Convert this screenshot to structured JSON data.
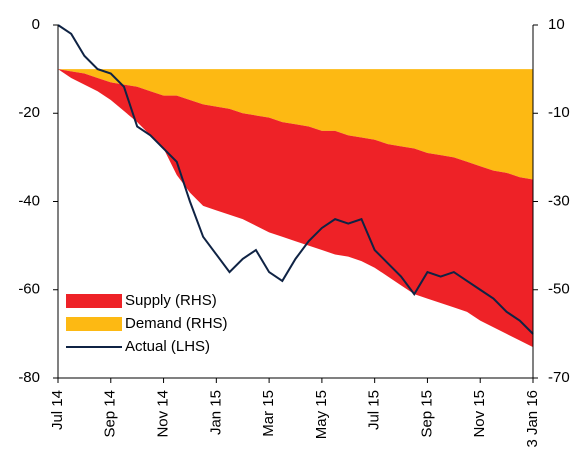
{
  "chart_data": {
    "type": "stacked-area-line",
    "categories": [
      "Jul 14",
      null,
      null,
      null,
      "Sep 14",
      null,
      null,
      null,
      "Nov 14",
      null,
      null,
      null,
      "Jan 15",
      null,
      null,
      null,
      "Mar 15",
      null,
      null,
      null,
      "May 15",
      null,
      null,
      null,
      "Jul 15",
      null,
      null,
      null,
      "Sep 15",
      null,
      null,
      null,
      "Nov 15",
      null,
      null,
      null,
      "3 Jan 16"
    ],
    "series": [
      {
        "name": "Supply (RHS)",
        "color": "#ee2227",
        "axis": "y2",
        "values": [
          0,
          -1.5,
          -2.5,
          -3,
          -4,
          -6,
          -8,
          -10,
          -12,
          -18,
          -21,
          -23,
          -23.5,
          -24,
          -24,
          -25,
          -26,
          -26,
          -26.5,
          -27,
          -27,
          -28,
          -27.5,
          -28,
          -29,
          -30,
          -31.5,
          -33,
          -33,
          -33.5,
          -34,
          -34,
          -35,
          -35.5,
          -36.5,
          -37,
          -38
        ]
      },
      {
        "name": "Demand (RHS)",
        "color": "#fdb913",
        "axis": "y2",
        "values": [
          0,
          -0.5,
          -1,
          -2,
          -3,
          -3.5,
          -4,
          -5,
          -6,
          -6,
          -7,
          -8,
          -8.5,
          -9,
          -10,
          -10.5,
          -11,
          -12,
          -12.5,
          -13,
          -14,
          -14,
          -15,
          -15.5,
          -16,
          -17,
          -17.5,
          -18,
          -19,
          -19.5,
          -20,
          -21,
          -22,
          -23,
          -23.5,
          -24.5,
          -25
        ]
      },
      {
        "name": "Actual (LHS)",
        "color": "#0f2344",
        "values": [
          0,
          -2,
          -7,
          -10,
          -11,
          -14,
          -23,
          -25,
          -28,
          -31,
          -40,
          -48,
          -52,
          -56,
          -53,
          -51,
          -56,
          -58,
          -53,
          -49,
          -46,
          -44,
          -45,
          -44,
          -51,
          -54,
          -57,
          -61,
          -56,
          -57,
          -56,
          -58,
          -60,
          -62,
          -65,
          -67,
          -70
        ]
      }
    ],
    "ylim": [
      -80,
      0
    ],
    "yticks": [
      0,
      -20,
      -40,
      -60,
      -80
    ],
    "y2lim": [
      -70,
      10
    ],
    "y2ticks": [
      10,
      -10,
      -30,
      -50,
      -70
    ],
    "legend": "lower-left"
  }
}
